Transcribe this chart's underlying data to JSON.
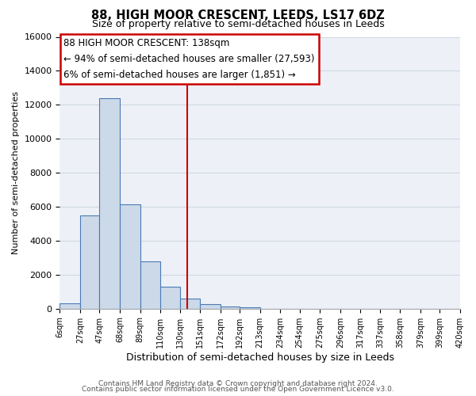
{
  "title": "88, HIGH MOOR CRESCENT, LEEDS, LS17 6DZ",
  "subtitle": "Size of property relative to semi-detached houses in Leeds",
  "xlabel": "Distribution of semi-detached houses by size in Leeds",
  "ylabel": "Number of semi-detached properties",
  "footer_line1": "Contains HM Land Registry data © Crown copyright and database right 2024.",
  "footer_line2": "Contains public sector information licensed under the Open Government Licence v3.0.",
  "annotation_line1": "88 HIGH MOOR CRESCENT: 138sqm",
  "annotation_line2": "← 94% of semi-detached houses are smaller (27,593)",
  "annotation_line3": "6% of semi-detached houses are larger (1,851) →",
  "property_line_x": 138,
  "bin_edges": [
    6,
    27,
    47,
    68,
    89,
    110,
    130,
    151,
    172,
    192,
    213,
    234,
    254,
    275,
    296,
    317,
    337,
    358,
    379,
    399,
    420
  ],
  "bin_counts": [
    300,
    5500,
    12400,
    6150,
    2800,
    1300,
    600,
    250,
    150,
    100,
    0,
    0,
    0,
    0,
    0,
    0,
    0,
    0,
    0,
    0
  ],
  "bar_facecolor": "#ccd9e8",
  "bar_edgecolor": "#4a7ab5",
  "bar_linewidth": 0.8,
  "vline_color": "#cc0000",
  "vline_linewidth": 1.5,
  "grid_color": "#d0d8e4",
  "bg_color": "#edf1f7",
  "box_edgecolor": "#cc0000",
  "box_facecolor": "white",
  "ylim": [
    0,
    16000
  ],
  "yticks": [
    0,
    2000,
    4000,
    6000,
    8000,
    10000,
    12000,
    14000,
    16000
  ],
  "tick_labels": [
    "6sqm",
    "27sqm",
    "47sqm",
    "68sqm",
    "89sqm",
    "110sqm",
    "130sqm",
    "151sqm",
    "172sqm",
    "192sqm",
    "213sqm",
    "234sqm",
    "254sqm",
    "275sqm",
    "296sqm",
    "317sqm",
    "337sqm",
    "358sqm",
    "379sqm",
    "399sqm",
    "420sqm"
  ]
}
